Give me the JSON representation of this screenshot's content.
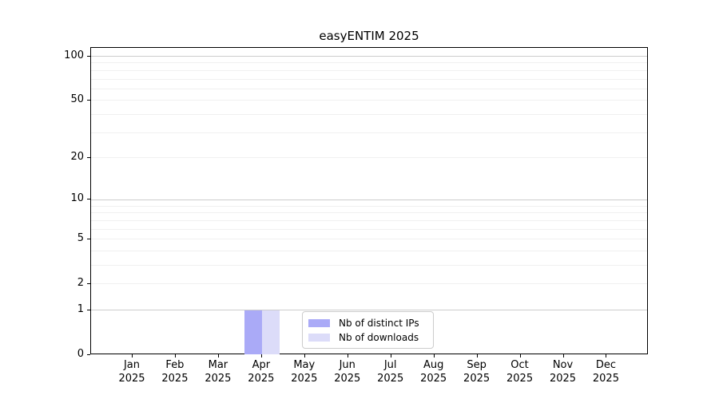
{
  "title": "easyENTIM 2025",
  "chart_data": {
    "type": "bar",
    "title": "easyENTIM 2025",
    "categories": [
      "Jan",
      "Feb",
      "Mar",
      "Apr",
      "May",
      "Jun",
      "Jul",
      "Aug",
      "Sep",
      "Oct",
      "Nov",
      "Dec"
    ],
    "category_year_sublabel": "2025",
    "series": [
      {
        "name": "Nb of distinct IPs",
        "color": "#aaaaf7",
        "values": [
          0,
          0,
          0,
          1,
          0,
          0,
          0,
          0,
          0,
          0,
          0,
          0
        ]
      },
      {
        "name": "Nb of downloads",
        "color": "#dcdcf9",
        "values": [
          0,
          0,
          0,
          1,
          0,
          0,
          0,
          0,
          0,
          0,
          0,
          0
        ]
      }
    ],
    "y_axis": {
      "scale": "log1p",
      "tick_labels": [
        0,
        1,
        2,
        5,
        10,
        20,
        50,
        100
      ],
      "range": [
        0,
        114
      ],
      "major_gridlines": [
        1,
        10,
        100
      ],
      "minor_gridlines": [
        2,
        3,
        4,
        5,
        6,
        7,
        8,
        9,
        20,
        30,
        40,
        50,
        60,
        70,
        80,
        90
      ]
    },
    "legend": {
      "position": "lower-center-inside"
    },
    "grid": true
  },
  "colors": {
    "background": "#ffffff",
    "spine": "#000000",
    "major_grid": "#cccccc",
    "minor_grid": "#f0f0f0",
    "legend_border": "#cccccc",
    "text": "#000000",
    "series_distinct_ips": "#aaaaf7",
    "series_downloads": "#dcdcf9"
  }
}
